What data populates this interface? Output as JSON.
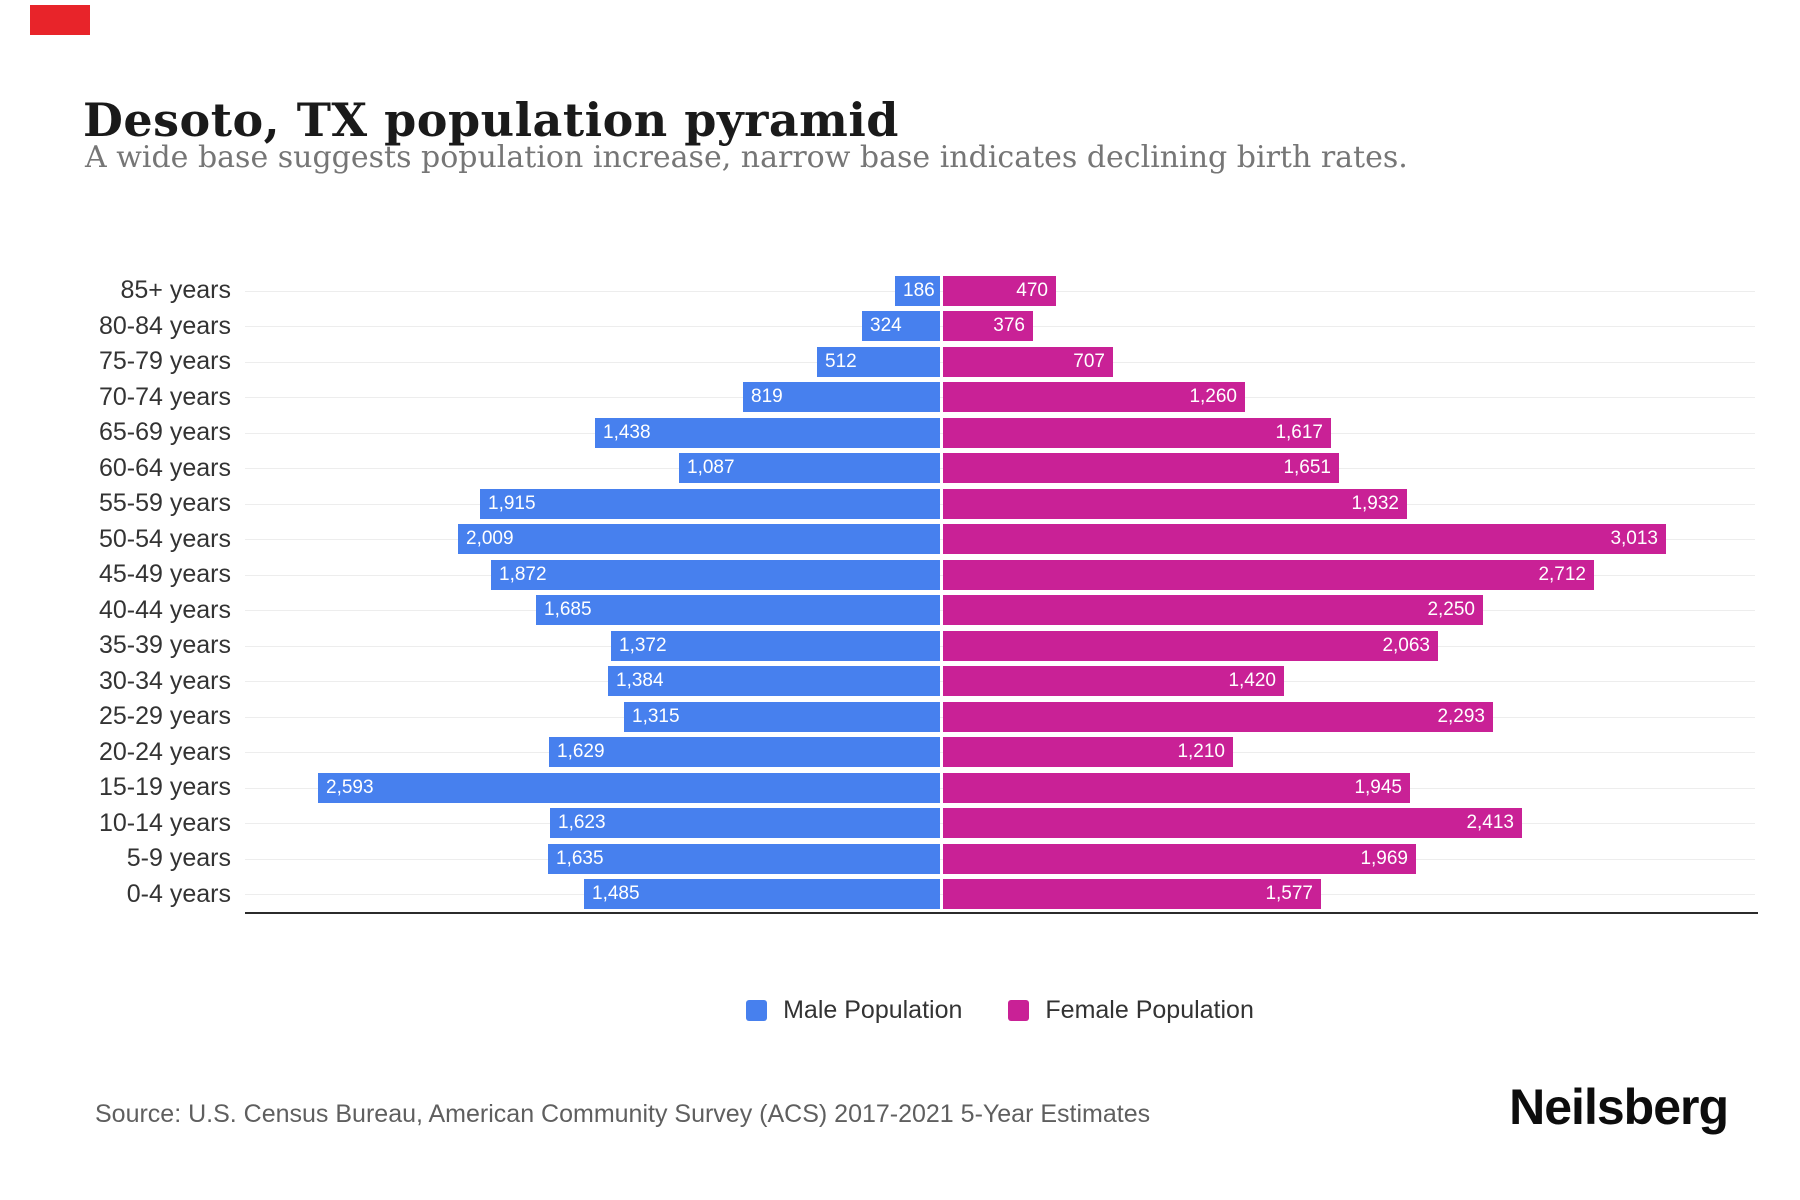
{
  "page": {
    "background": "#ffffff"
  },
  "recording_indicator": {
    "color": "#e8242a"
  },
  "header": {
    "title": "Desoto, TX population pyramid",
    "subtitle": "A wide base suggests population increase, narrow base indicates declining birth rates."
  },
  "chart_data": {
    "type": "bar",
    "variant": "population-pyramid",
    "orientation": "horizontal",
    "grid": "light horizontal lines per row",
    "value_labels": "inside bar ends, white",
    "categories": [
      "85+ years",
      "80-84 years",
      "75-79 years",
      "70-74 years",
      "65-69 years",
      "60-64 years",
      "55-59 years",
      "50-54 years",
      "45-49 years",
      "40-44 years",
      "35-39 years",
      "30-34 years",
      "25-29 years",
      "20-24 years",
      "15-19 years",
      "10-14 years",
      "5-9 years",
      "0-4 years"
    ],
    "series": [
      {
        "name": "Male Population",
        "color": "#4780ee",
        "side": "left",
        "values": [
          186,
          324,
          512,
          819,
          1438,
          1087,
          1915,
          2009,
          1872,
          1685,
          1372,
          1384,
          1315,
          1629,
          2593,
          1623,
          1635,
          1485
        ],
        "labels": [
          "186",
          "324",
          "512",
          "819",
          "1,438",
          "1,087",
          "1,915",
          "2,009",
          "1,872",
          "1,685",
          "1,372",
          "1,384",
          "1,315",
          "1,629",
          "2,593",
          "1,623",
          "1,635",
          "1,485"
        ]
      },
      {
        "name": "Female Population",
        "color": "#c92196",
        "side": "right",
        "values": [
          470,
          376,
          707,
          1260,
          1617,
          1651,
          1932,
          3013,
          2712,
          2250,
          2063,
          1420,
          2293,
          1210,
          1945,
          2413,
          1969,
          1577
        ],
        "labels": [
          "470",
          "376",
          "707",
          "1,260",
          "1,617",
          "1,651",
          "1,932",
          "3,013",
          "2,712",
          "2,250",
          "2,063",
          "1,420",
          "2,293",
          "1,210",
          "1,945",
          "2,413",
          "1,969",
          "1,577"
        ]
      }
    ],
    "max_value": 3013,
    "legend_position": "bottom-center"
  },
  "legend": {
    "items": [
      {
        "label": "Male Population",
        "color": "#4780ee"
      },
      {
        "label": "Female Population",
        "color": "#c92196"
      }
    ]
  },
  "footer": {
    "source": "Source: U.S. Census Bureau, American Community Survey (ACS) 2017-2021 5-Year Estimates",
    "brand": "Neilsberg"
  }
}
